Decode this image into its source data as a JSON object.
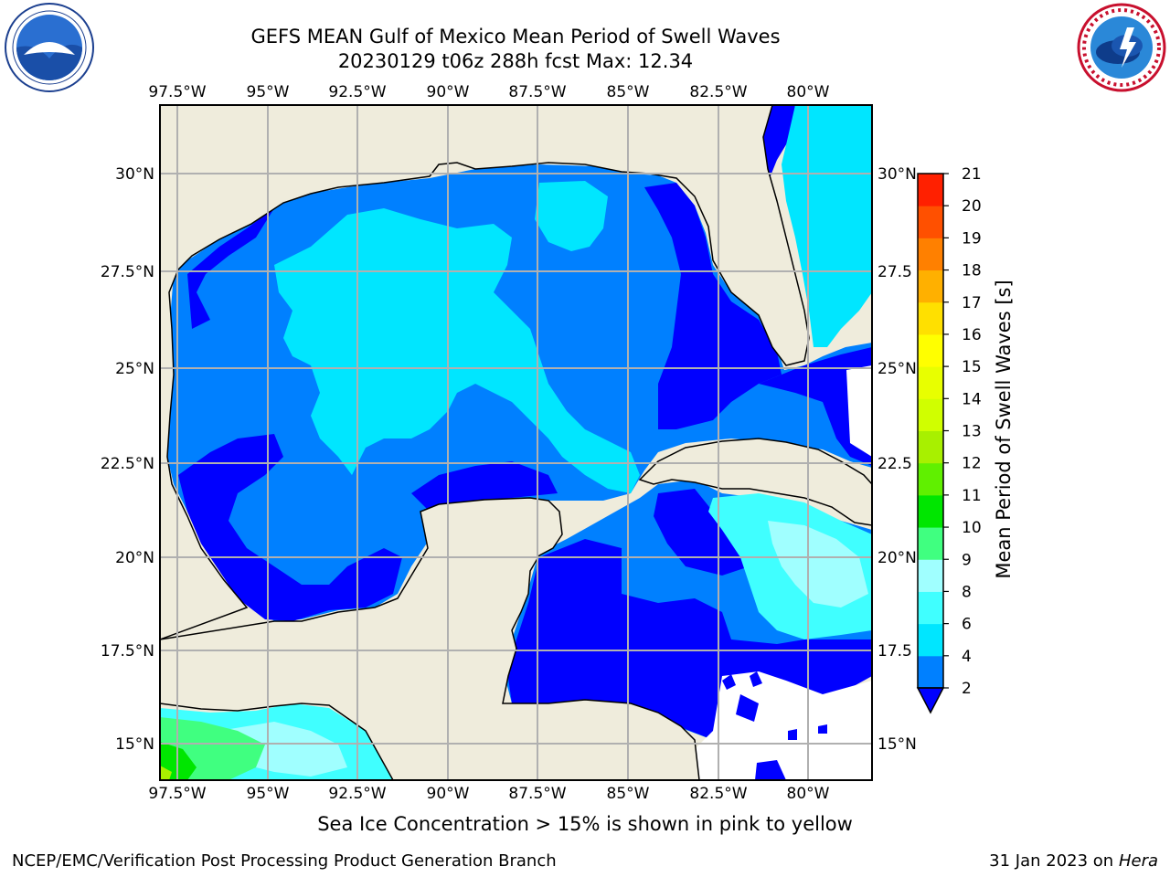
{
  "title": {
    "line1": "GEFS MEAN Gulf of Mexico Mean Period of Swell Waves",
    "line2": "20230129 t06z 288h fcst   Max: 12.34"
  },
  "logos": {
    "left": "noaa-logo",
    "right": "national-weather-service-logo"
  },
  "map": {
    "lon_labels": [
      "97.5°W",
      "95°W",
      "92.5°W",
      "90°W",
      "87.5°W",
      "85°W",
      "82.5°W",
      "80°W"
    ],
    "lat_labels": [
      "30°N",
      "27.5°N",
      "25°N",
      "22.5°N",
      "20°N",
      "17.5°N",
      "15°N"
    ],
    "right_lat_labels": [
      "30°N",
      "27.5",
      "25°N",
      "22.5",
      "20°N",
      "17.5",
      "15°N"
    ],
    "land_color": "#efecdc",
    "grid_color": "#b0b0b0"
  },
  "colorbar": {
    "label": "Mean Period of Swell Waves [s]",
    "levels": [
      "2",
      "4",
      "6",
      "8",
      "9",
      "10",
      "11",
      "12",
      "13",
      "14",
      "15",
      "16",
      "17",
      "18",
      "19",
      "20",
      "21"
    ],
    "colors": [
      "#0080ff",
      "#00e6ff",
      "#40ffff",
      "#a0ffff",
      "#40ff80",
      "#00e600",
      "#60f000",
      "#a8f000",
      "#d0ff00",
      "#e8ff00",
      "#ffff00",
      "#ffe000",
      "#ffb000",
      "#ff8000",
      "#ff5000",
      "#ff2000"
    ],
    "under_color": "#0000ff"
  },
  "note": "Sea Ice Concentration > 15% is shown in pink to yellow",
  "footer": {
    "left": "NCEP/EMC/Verification Post Processing Product Generation Branch",
    "right_date": "31 Jan 2023 on ",
    "right_host": "Hera"
  }
}
